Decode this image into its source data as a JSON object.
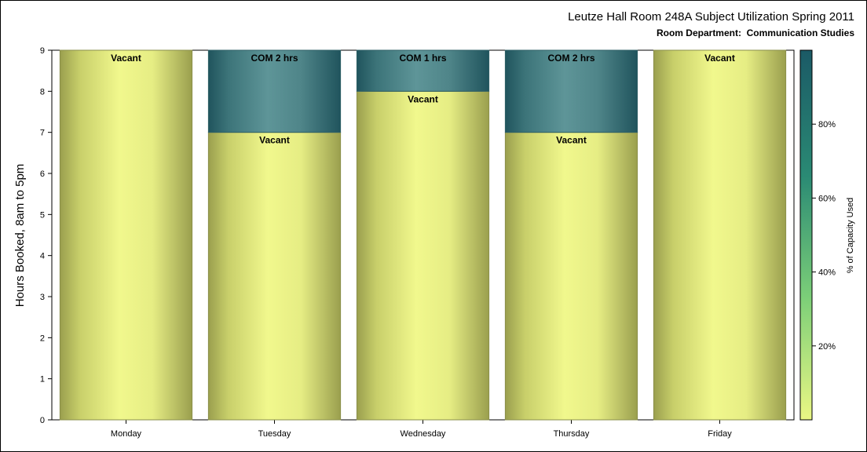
{
  "chart_data": {
    "type": "bar",
    "stacked": true,
    "title": "Leutze Hall Room 248A Subject Utilization Spring 2011",
    "subtitle": "Room Department:  Communication Studies",
    "ylabel": "Hours Booked, 8am to 5pm",
    "xlabel": "",
    "ylim": [
      0,
      9
    ],
    "yticks": [
      0,
      1,
      2,
      3,
      4,
      5,
      6,
      7,
      8,
      9
    ],
    "categories": [
      "Monday",
      "Tuesday",
      "Wednesday",
      "Thursday",
      "Friday"
    ],
    "bars": [
      {
        "category": "Monday",
        "segments": [
          {
            "label": "Vacant",
            "from": 0,
            "to": 9,
            "kind": "vacant"
          }
        ]
      },
      {
        "category": "Tuesday",
        "segments": [
          {
            "label": "Vacant",
            "from": 0,
            "to": 7,
            "kind": "vacant"
          },
          {
            "label": "COM 2 hrs",
            "from": 7,
            "to": 9,
            "kind": "used"
          }
        ]
      },
      {
        "category": "Wednesday",
        "segments": [
          {
            "label": "Vacant",
            "from": 0,
            "to": 8,
            "kind": "vacant"
          },
          {
            "label": "COM 1 hrs",
            "from": 8,
            "to": 9,
            "kind": "used"
          }
        ]
      },
      {
        "category": "Thursday",
        "segments": [
          {
            "label": "Vacant",
            "from": 0,
            "to": 7,
            "kind": "vacant"
          },
          {
            "label": "COM 2 hrs",
            "from": 7,
            "to": 9,
            "kind": "used"
          }
        ]
      },
      {
        "category": "Friday",
        "segments": [
          {
            "label": "Vacant",
            "from": 0,
            "to": 9,
            "kind": "vacant"
          }
        ]
      }
    ],
    "colorbar": {
      "title": "% of Capacity Used",
      "ticks": [
        20,
        40,
        60,
        80
      ],
      "tick_labels": [
        "20%",
        "40%",
        "60%",
        "80%"
      ],
      "range": [
        0,
        100
      ],
      "colors": [
        "#eaf784",
        "#7ccf78",
        "#2a8a74",
        "#1b5a66"
      ]
    },
    "colors": {
      "vacant_light": "#f1f88d",
      "vacant_dark": "#9a9f4e",
      "used_light": "#5e9598",
      "used_dark": "#20545d"
    },
    "grid": false,
    "legend_position": "right"
  }
}
